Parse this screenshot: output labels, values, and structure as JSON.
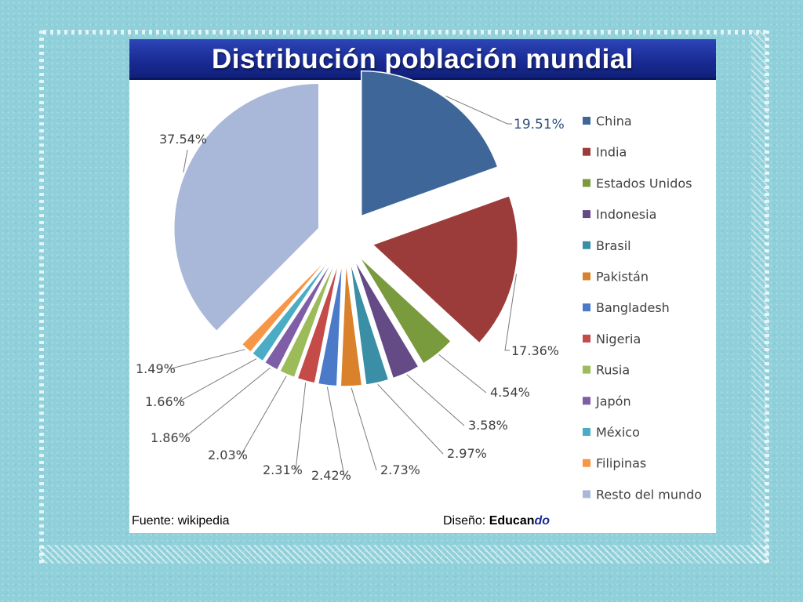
{
  "title": "Distribución población mundial",
  "footer": {
    "source": "Fuente: wikipedia",
    "design_label": "Diseño:",
    "brand_main": "Educan",
    "brand_accent": "do"
  },
  "colors": {
    "title_bar": "#1a2c95",
    "brand_accent": "#1a2c95"
  },
  "chart_data": {
    "type": "pie",
    "title": "Distribución población mundial",
    "legend_position": "right",
    "labels": [
      "China",
      "India",
      "Estados Unidos",
      "Indonesia",
      "Brasil",
      "Pakistán",
      "Bangladesh",
      "Nigeria",
      "Rusia",
      "Japón",
      "México",
      "Filipinas",
      "Resto del mundo"
    ],
    "values": [
      19.51,
      17.36,
      4.54,
      3.58,
      2.97,
      2.73,
      2.42,
      2.31,
      2.03,
      1.86,
      1.66,
      1.49,
      37.54
    ],
    "value_labels": [
      "19.51%",
      "17.36%",
      "4.54%",
      "3.58%",
      "2.97%",
      "2.73%",
      "2.42%",
      "2.31%",
      "2.03%",
      "1.86%",
      "1.66%",
      "1.49%",
      "37.54%"
    ],
    "colors": [
      "#3e6699",
      "#9b3c3a",
      "#7a9a3e",
      "#654b86",
      "#3a8ea5",
      "#d9822b",
      "#4a7ac8",
      "#c44b48",
      "#9cbb59",
      "#7e5fa7",
      "#4bacc6",
      "#f79646",
      "#a9b8d8"
    ]
  }
}
